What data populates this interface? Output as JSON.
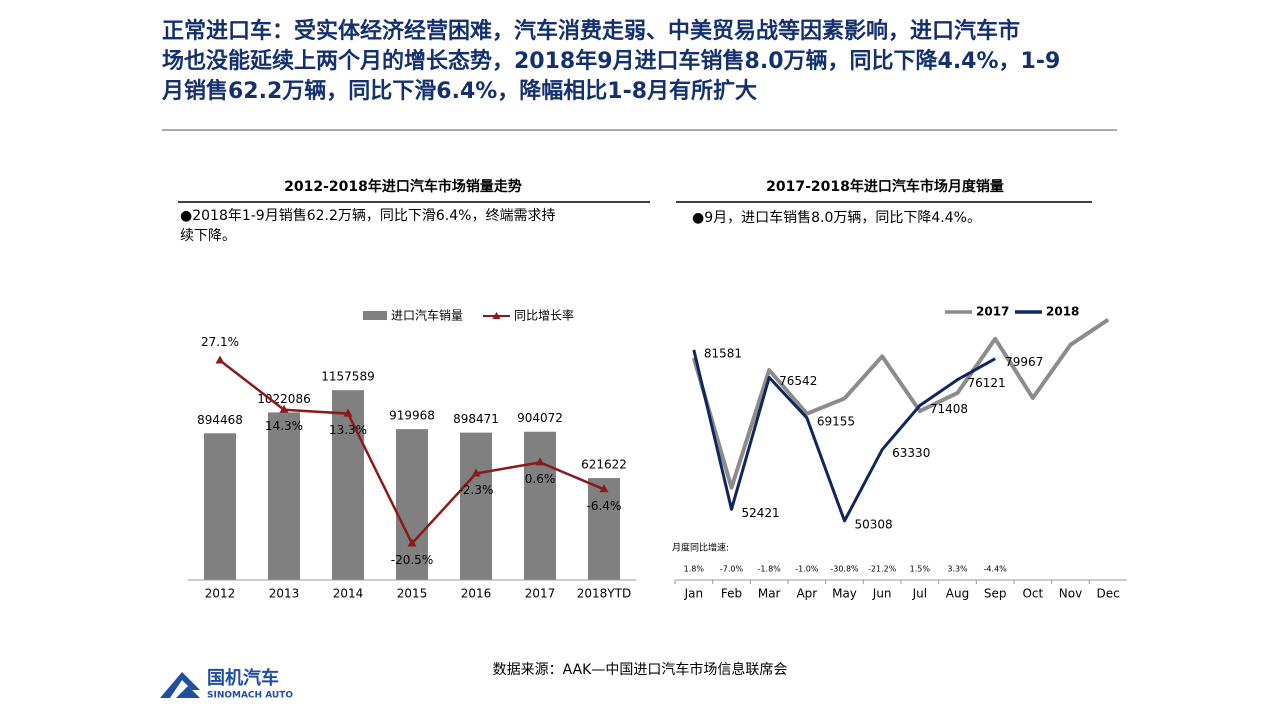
{
  "header": {
    "title_lines": [
      "正常进口车：受实体经济经营困难，汽车消费走弱、中美贸易战等因素影响，进口汽车市",
      "场也没能延续上两个月的增长态势，2018年9月进口车销售8.0万辆，同比下降4.4%，1-9",
      "月销售62.2万辆，同比下滑6.4%，降幅相比1-8月有所扩大"
    ]
  },
  "chart_data": [
    {
      "type": "bar",
      "title": "2012-2018年进口汽车市场销量走势",
      "note": "●2018年1-9月销售62.2万辆，同比下滑6.4%，终端需求持续下降。",
      "categories": [
        "2012",
        "2013",
        "2014",
        "2015",
        "2016",
        "2017",
        "2018YTD"
      ],
      "series": [
        {
          "name": "进口汽车销量",
          "color": "#808080",
          "values": [
            894468,
            1022086,
            1157589,
            919968,
            898471,
            904072,
            621622
          ]
        },
        {
          "name": "同比增长率",
          "color": "#8b1a1a",
          "type": "line",
          "axis": "y2",
          "values": [
            27.1,
            14.3,
            13.3,
            -20.5,
            -2.3,
            0.6,
            -6.4
          ],
          "value_labels": [
            "27.1%",
            "14.3%",
            "13.3%",
            "-20.5%",
            "-2.3%",
            "0.6%",
            "-6.4%"
          ]
        }
      ],
      "ylim": [
        0,
        1500000
      ],
      "y2lim": [
        -30,
        34
      ],
      "legend": "top"
    },
    {
      "type": "line",
      "title": "2017-2018年进口汽车市场月度销量",
      "note": "●9月，进口车销售8.0万辆，同比下降4.4%。",
      "categories": [
        "Jan",
        "Feb",
        "Mar",
        "Apr",
        "May",
        "Jun",
        "Jul",
        "Aug",
        "Sep",
        "Oct",
        "Nov",
        "Dec"
      ],
      "series": [
        {
          "name": "2017",
          "color": "#8c8c8c",
          "values": [
            80100,
            56400,
            77900,
            69900,
            72700,
            80400,
            70400,
            73700,
            83600,
            72800,
            82500,
            87100
          ]
        },
        {
          "name": "2018",
          "color": "#0f2660",
          "values": [
            81581,
            52421,
            76542,
            69155,
            50308,
            63330,
            71408,
            76121,
            79967,
            null,
            null,
            null
          ]
        }
      ],
      "ylim": [
        39500,
        90700
      ],
      "legend": "top-right",
      "yoy": {
        "label": "月度同比增速:",
        "values": [
          1.8,
          -7.0,
          -1.8,
          -1.0,
          -30.8,
          -21.2,
          1.5,
          3.3,
          -4.4
        ],
        "value_labels": [
          "1.8%",
          "-7.0%",
          "-1.8%",
          "-1.0%",
          "-30.8%",
          "-21.2%",
          "1.5%",
          "3.3%",
          "-4.4%"
        ],
        "positive_color": "#e03030",
        "negative_color": "#2f4f9f"
      }
    }
  ],
  "source": "数据来源：AAK—中国进口汽车市场信息联席会",
  "logo": {
    "name": "国机汽车",
    "subname": "SINOMACH AUTO"
  }
}
